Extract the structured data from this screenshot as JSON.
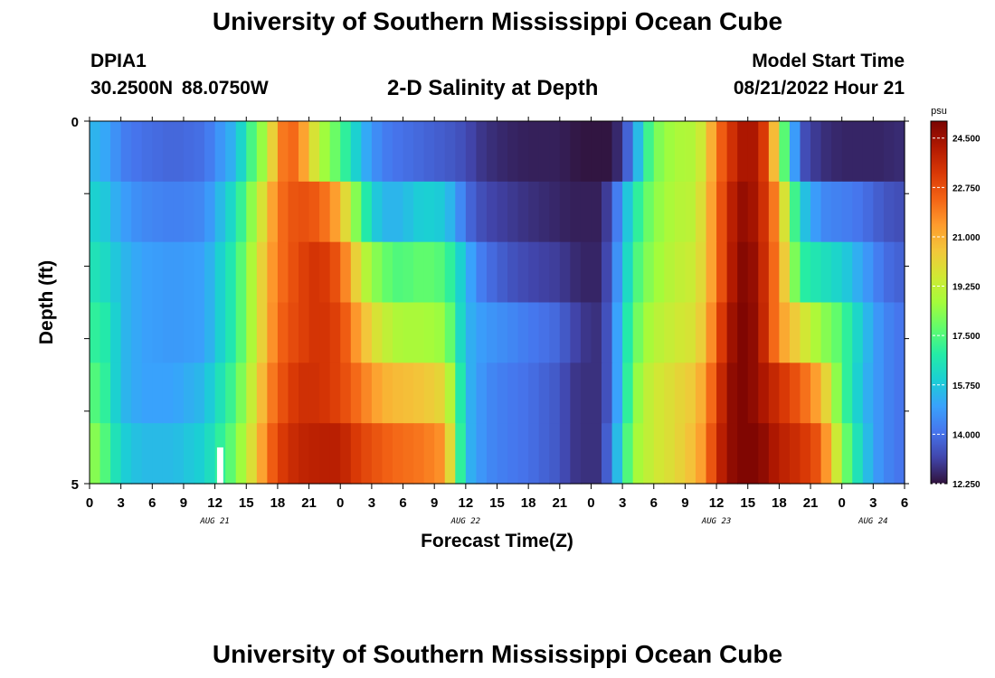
{
  "header": {
    "title": "University of Southern Mississippi Ocean Cube",
    "station_id": "DPIA1",
    "coords": "30.2500N 88.0750W",
    "plot_title": "2-D Salinity at Depth",
    "model_label": "Model Start Time",
    "model_time": "08/21/2022 Hour 21"
  },
  "footer": {
    "title": "University of Southern Mississippi Ocean Cube"
  },
  "colors": {
    "missing": "#ffffff",
    "scale": [
      "#30123b",
      "#4145ab",
      "#4675ed",
      "#39a2fc",
      "#1bcfd4",
      "#24eca6",
      "#61fc6c",
      "#a4fc3b",
      "#d1e834",
      "#f3c63a",
      "#fe9b2d",
      "#f36315",
      "#d93806",
      "#b11901",
      "#7a0402"
    ]
  },
  "chart_data": {
    "type": "heatmap",
    "xlabel": "Forecast Time(Z)",
    "ylabel": "Depth (ft)",
    "x_range_hours": [
      0,
      78
    ],
    "x_tick_step_hours": 3,
    "x_tick_labels": [
      "0",
      "3",
      "6",
      "9",
      "12",
      "15",
      "18",
      "21",
      "0",
      "3",
      "6",
      "9",
      "12",
      "15",
      "18",
      "21",
      "0",
      "3",
      "6",
      "9",
      "12",
      "15",
      "18",
      "21",
      "0",
      "3",
      "6"
    ],
    "date_labels": [
      {
        "text": "AUG 21",
        "hour": 12
      },
      {
        "text": "AUG 22",
        "hour": 36
      },
      {
        "text": "AUG 23",
        "hour": 60
      },
      {
        "text": "AUG 24",
        "hour": 75
      }
    ],
    "y_range": [
      0,
      5
    ],
    "y_ticks": [
      0,
      1,
      2,
      3,
      4,
      5
    ],
    "y_tick_labels": [
      "0",
      "",
      "",
      "",
      "",
      "5"
    ],
    "depth_levels_ft": [
      0,
      1,
      2,
      3,
      4,
      5
    ],
    "colorbar": {
      "unit": "psu",
      "min": 12.25,
      "max": 25.1,
      "ticks": [
        "24.500",
        "22.750",
        "21.000",
        "19.250",
        "17.500",
        "15.750",
        "14.000",
        "12.250"
      ]
    },
    "missing_data": [
      {
        "hour_start": 12.2,
        "hour_end": 12.8,
        "depth_start": 4.5,
        "depth_end": 5
      }
    ],
    "profiles": {
      "hours": [
        0,
        1,
        2,
        3,
        5,
        8,
        11,
        14,
        16,
        17,
        18,
        19,
        20,
        22,
        24,
        25,
        26,
        27,
        28,
        29,
        30,
        32,
        34,
        35,
        36,
        37,
        38,
        40,
        42,
        45,
        46,
        47,
        48,
        49,
        50,
        51,
        52,
        53,
        54,
        56,
        58,
        59,
        60,
        61,
        62,
        63,
        64,
        65,
        66,
        68,
        70,
        72,
        73,
        74,
        75,
        76,
        77,
        78
      ],
      "depth_0": [
        15.5,
        15.2,
        15.0,
        14.3,
        14.0,
        13.8,
        14.0,
        15.5,
        18.0,
        19.0,
        21.5,
        22.5,
        22.0,
        19.0,
        17.5,
        16.5,
        15.5,
        14.8,
        14.3,
        14.1,
        14.0,
        13.8,
        13.6,
        13.5,
        13.3,
        13.0,
        12.8,
        12.6,
        12.5,
        12.5,
        12.4,
        12.3,
        12.3,
        12.3,
        12.3,
        13.0,
        14.5,
        16.5,
        18.0,
        18.8,
        19.0,
        20.0,
        22.0,
        23.0,
        24.0,
        24.5,
        24.0,
        22.5,
        19.0,
        13.5,
        12.8,
        12.6,
        12.6,
        12.6,
        12.6,
        12.6,
        12.7,
        12.7
      ],
      "depth_1": [
        16.0,
        16.0,
        15.5,
        15.0,
        14.5,
        14.3,
        14.5,
        16.5,
        19.0,
        20.5,
        22.0,
        22.5,
        22.8,
        22.5,
        21.0,
        19.0,
        17.5,
        16.0,
        15.5,
        15.3,
        15.5,
        16.0,
        15.8,
        15.0,
        14.0,
        13.5,
        13.2,
        13.0,
        12.8,
        12.6,
        12.5,
        12.5,
        12.5,
        12.5,
        13.5,
        15.0,
        16.5,
        17.5,
        18.3,
        19.0,
        19.2,
        20.5,
        22.0,
        23.5,
        24.5,
        24.8,
        24.0,
        23.0,
        21.0,
        16.0,
        14.5,
        14.3,
        14.2,
        14.0,
        13.8,
        13.5,
        13.4,
        13.3
      ],
      "depth_2": [
        16.5,
        16.5,
        16.0,
        15.5,
        15.0,
        14.8,
        15.0,
        17.0,
        19.5,
        21.0,
        22.0,
        22.5,
        23.0,
        23.5,
        22.5,
        21.0,
        19.5,
        18.5,
        18.0,
        17.5,
        17.5,
        17.8,
        17.5,
        16.5,
        15.5,
        14.5,
        14.0,
        13.5,
        13.2,
        13.0,
        12.8,
        12.6,
        12.6,
        12.6,
        13.8,
        15.5,
        17.0,
        18.0,
        18.5,
        19.2,
        19.5,
        20.5,
        22.0,
        23.5,
        24.8,
        25.0,
        24.3,
        23.0,
        21.5,
        17.0,
        16.5,
        16.0,
        15.5,
        15.0,
        14.5,
        14.0,
        13.8,
        13.7
      ],
      "depth_3": [
        17.0,
        17.0,
        16.5,
        15.5,
        15.0,
        14.8,
        15.0,
        17.0,
        19.5,
        21.0,
        22.2,
        22.7,
        23.0,
        23.5,
        23.0,
        22.0,
        21.0,
        20.0,
        19.5,
        19.0,
        18.8,
        18.8,
        18.5,
        17.0,
        15.5,
        15.0,
        14.8,
        14.5,
        14.2,
        13.8,
        13.3,
        13.0,
        12.8,
        12.8,
        14.0,
        16.0,
        17.5,
        18.5,
        19.0,
        19.5,
        19.8,
        20.8,
        22.5,
        24.0,
        25.0,
        25.0,
        24.5,
        23.0,
        21.5,
        20.0,
        18.5,
        17.5,
        16.5,
        15.8,
        15.0,
        14.5,
        14.2,
        14.0
      ],
      "depth_4": [
        17.5,
        17.5,
        16.5,
        15.5,
        15.0,
        15.0,
        15.5,
        17.5,
        20.0,
        21.5,
        22.5,
        23.0,
        23.5,
        23.5,
        23.0,
        22.5,
        22.0,
        21.5,
        21.0,
        20.8,
        20.7,
        20.5,
        20.0,
        18.0,
        15.5,
        15.0,
        14.5,
        14.2,
        14.0,
        13.5,
        13.0,
        12.8,
        12.8,
        12.8,
        14.0,
        16.0,
        18.0,
        19.0,
        19.5,
        20.0,
        20.5,
        21.5,
        23.0,
        24.5,
        25.0,
        25.0,
        24.5,
        24.0,
        23.5,
        22.5,
        21.0,
        17.5,
        16.5,
        15.5,
        15.0,
        14.5,
        14.2,
        14.0
      ],
      "depth_5": [
        18.5,
        18.0,
        17.0,
        16.0,
        15.5,
        15.5,
        16.0,
        18.0,
        20.5,
        22.0,
        23.0,
        23.5,
        23.8,
        24.0,
        24.0,
        23.5,
        23.0,
        22.8,
        22.5,
        22.3,
        22.2,
        22.0,
        21.5,
        18.5,
        15.5,
        15.0,
        14.5,
        14.2,
        14.0,
        13.5,
        13.0,
        12.8,
        12.8,
        12.8,
        14.5,
        16.5,
        18.5,
        19.0,
        19.5,
        20.0,
        20.8,
        21.8,
        23.5,
        24.5,
        25.0,
        25.0,
        25.0,
        24.5,
        24.0,
        23.5,
        22.5,
        18.5,
        17.0,
        16.0,
        15.0,
        14.5,
        14.2,
        14.0
      ]
    }
  }
}
